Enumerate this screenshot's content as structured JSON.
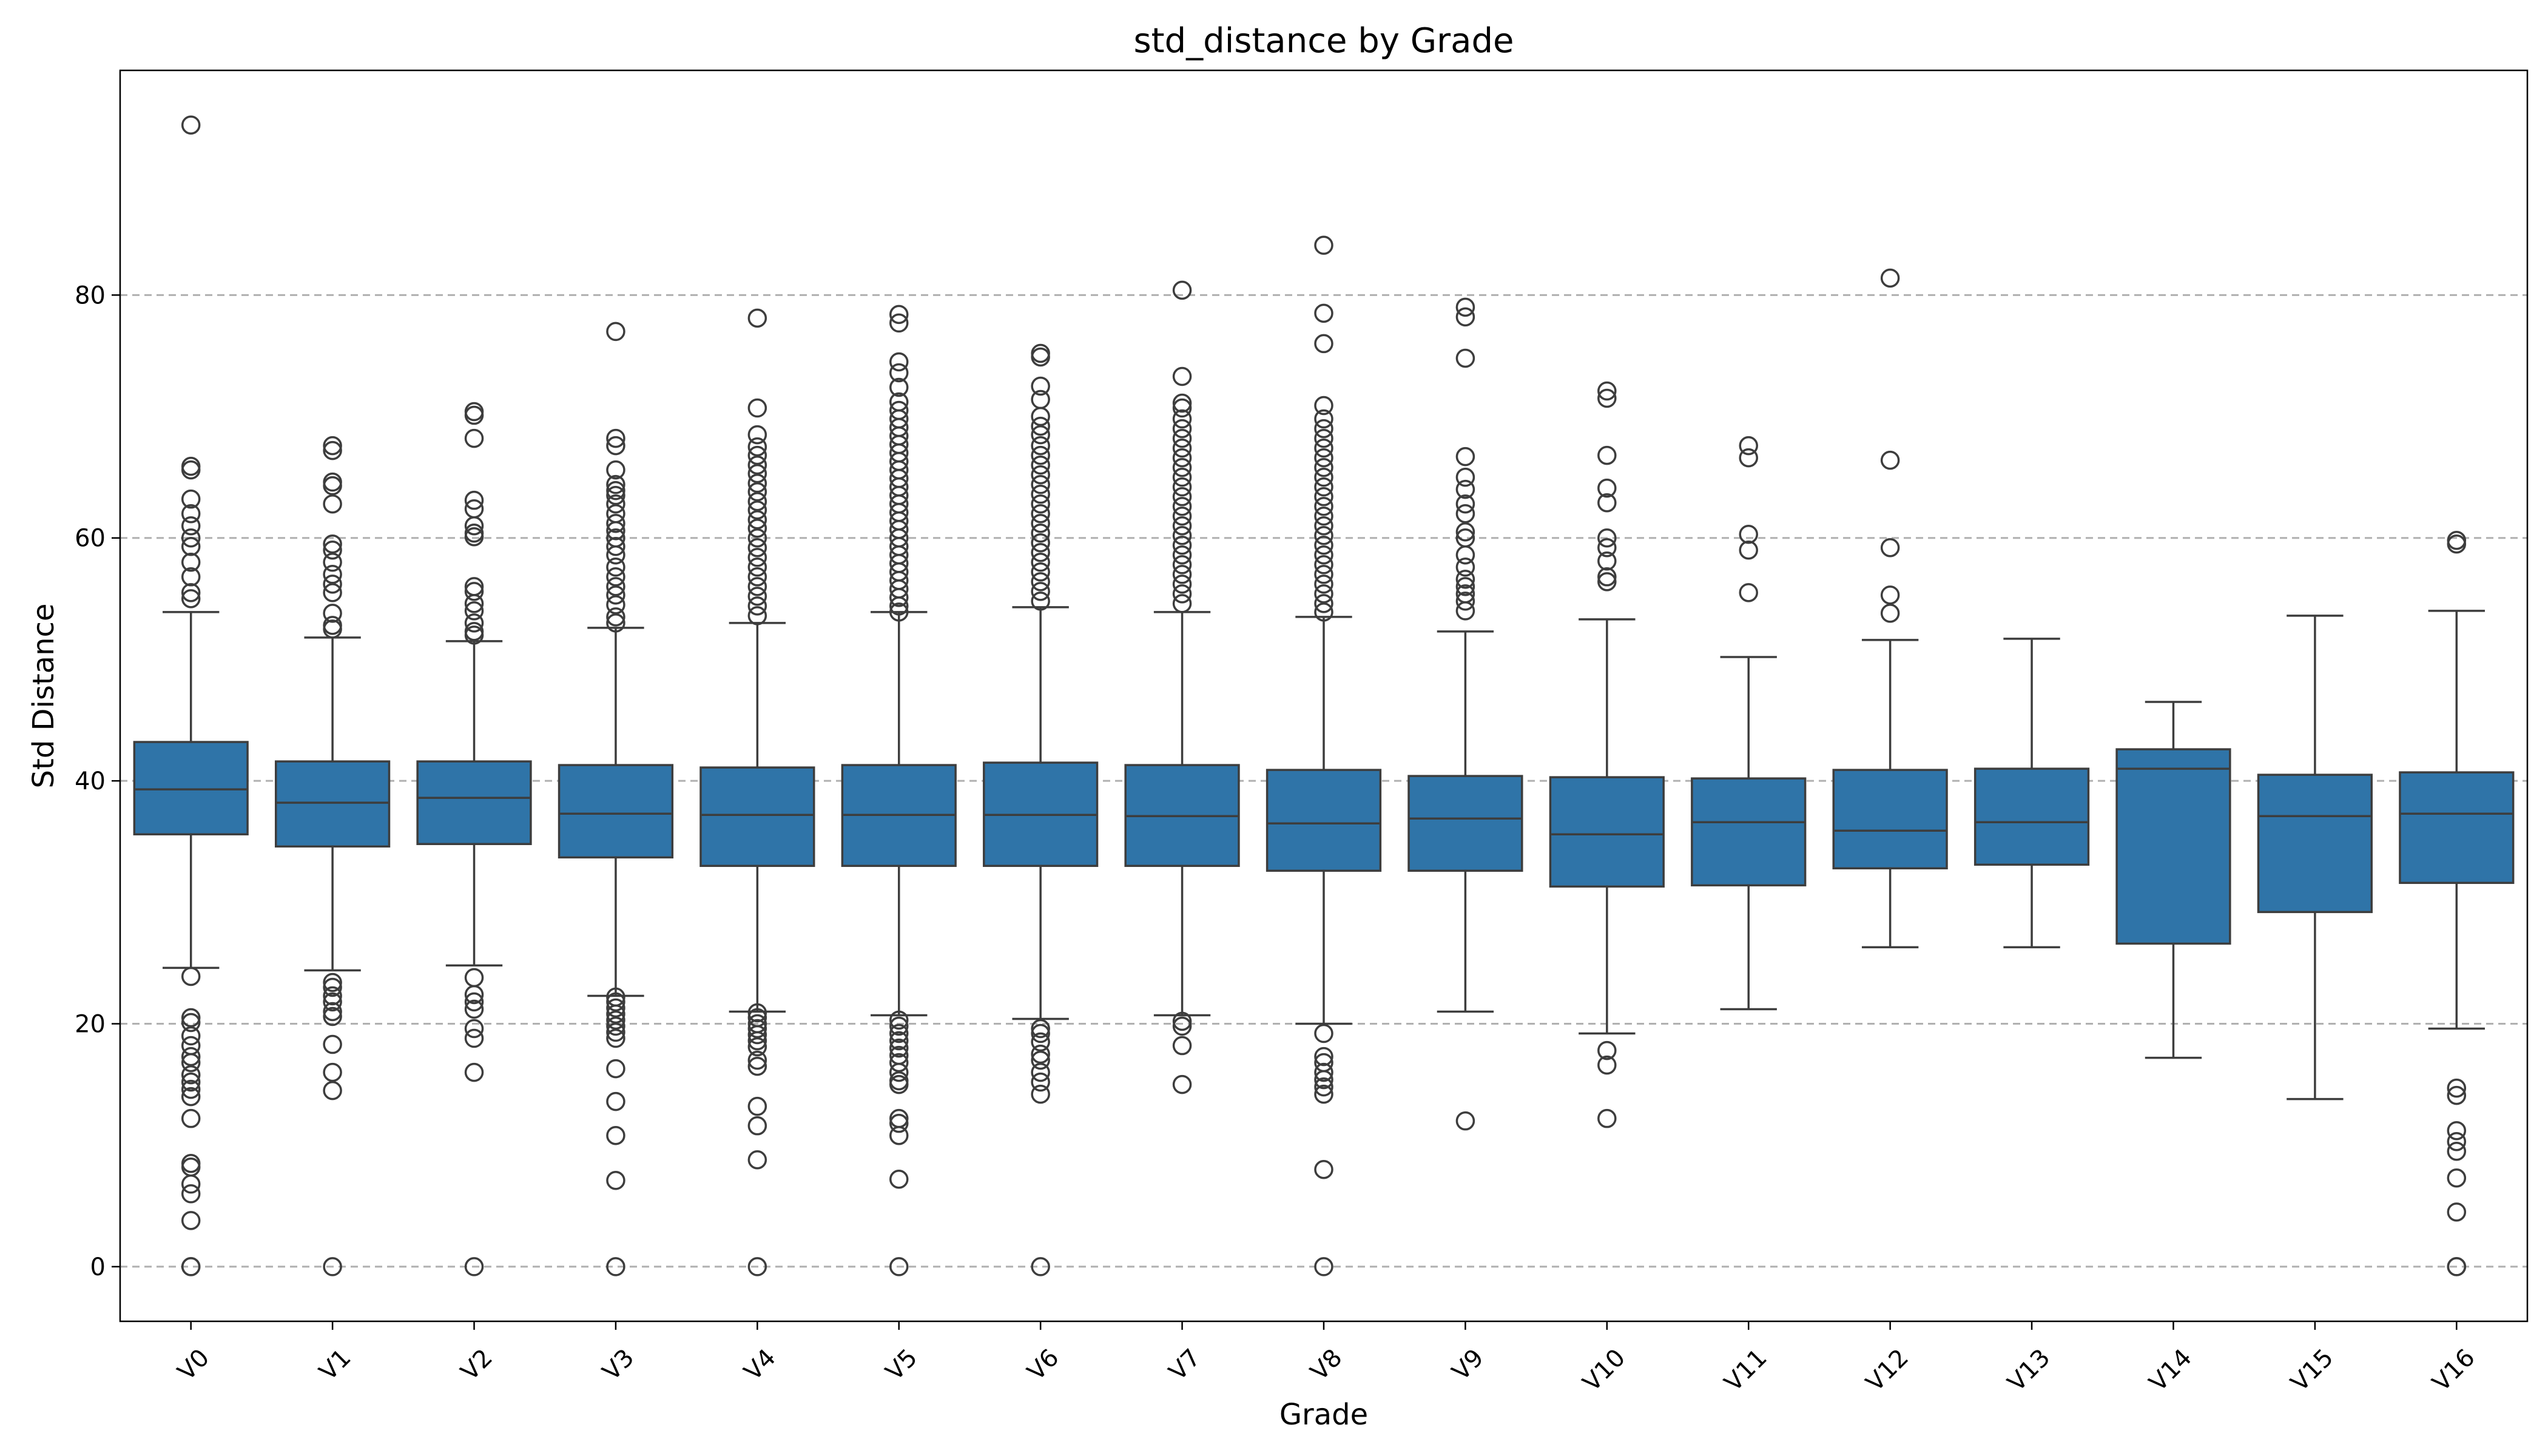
{
  "chart_data": {
    "type": "box",
    "title": "std_distance by Grade",
    "xlabel": "Grade",
    "ylabel": "Std Distance",
    "ylim": [
      -4.5,
      98.5
    ],
    "yticks": [
      0,
      20,
      40,
      60,
      80
    ],
    "grid": "horizontal dashed",
    "box_color": "#2f74a8",
    "line_color": "#3d3d3d",
    "categories": [
      "V0",
      "V1",
      "V2",
      "V3",
      "V4",
      "V5",
      "V6",
      "V7",
      "V8",
      "V9",
      "V10",
      "V11",
      "V12",
      "V13",
      "V14",
      "V15",
      "V16"
    ],
    "boxes": [
      {
        "q1": 35.6,
        "median": 39.3,
        "q3": 43.2,
        "whislo": 24.6,
        "whishi": 53.9,
        "fliers": [
          94.0,
          65.9,
          65.6,
          63.2,
          62.0,
          61.0,
          60.0,
          59.3,
          58.0,
          56.8,
          55.5,
          55.0,
          23.9,
          20.5,
          20.1,
          19.0,
          18.2,
          17.3,
          16.8,
          15.8,
          15.2,
          14.6,
          14.0,
          12.2,
          8.5,
          8.2,
          6.8,
          6.0,
          3.8,
          0.0,
          0.0
        ]
      },
      {
        "q1": 34.6,
        "median": 38.2,
        "q3": 41.6,
        "whislo": 24.4,
        "whishi": 51.8,
        "fliers": [
          67.6,
          67.2,
          64.6,
          64.3,
          62.8,
          59.5,
          59.0,
          58.0,
          57.0,
          56.2,
          55.5,
          53.8,
          52.8,
          52.5,
          23.4,
          23.0,
          22.3,
          21.8,
          21.0,
          20.6,
          18.3,
          16.0,
          14.5,
          0.0
        ]
      },
      {
        "q1": 34.8,
        "median": 38.6,
        "q3": 41.6,
        "whislo": 24.8,
        "whishi": 51.5,
        "fliers": [
          70.4,
          70.1,
          68.2,
          63.1,
          62.4,
          61.0,
          60.4,
          60.1,
          56.0,
          55.6,
          54.6,
          54.0,
          53.0,
          52.3,
          52.0,
          23.8,
          22.4,
          21.8,
          21.2,
          19.6,
          18.8,
          16.0,
          0.0
        ]
      },
      {
        "q1": 33.7,
        "median": 37.3,
        "q3": 41.3,
        "whislo": 22.3,
        "whishi": 52.6,
        "fliers": [
          77.0,
          68.2,
          67.6,
          65.6,
          64.4,
          63.9,
          63.5,
          62.8,
          62.0,
          61.2,
          60.6,
          60.0,
          59.3,
          58.6,
          57.6,
          56.8,
          56.0,
          55.3,
          54.5,
          53.5,
          53.0,
          22.2,
          21.8,
          21.3,
          20.8,
          20.3,
          19.8,
          19.3,
          18.8,
          16.3,
          13.6,
          10.8,
          7.1,
          0.0
        ]
      },
      {
        "q1": 33.0,
        "median": 37.2,
        "q3": 41.1,
        "whislo": 21.0,
        "whishi": 53.0,
        "fliers": [
          78.1,
          70.7,
          68.5,
          67.5,
          66.8,
          66.0,
          65.3,
          64.5,
          63.8,
          63.0,
          62.3,
          61.5,
          60.8,
          60.0,
          59.2,
          58.4,
          57.6,
          56.8,
          56.0,
          55.2,
          54.4,
          53.6,
          20.9,
          20.5,
          20.0,
          19.6,
          19.1,
          18.6,
          18.1,
          17.0,
          16.5,
          13.2,
          11.6,
          8.8,
          0.0
        ]
      },
      {
        "q1": 33.0,
        "median": 37.2,
        "q3": 41.3,
        "whislo": 20.7,
        "whishi": 53.9,
        "fliers": [
          78.4,
          77.7,
          74.5,
          73.6,
          72.4,
          71.2,
          70.5,
          69.8,
          69.1,
          68.4,
          67.7,
          67.0,
          66.3,
          65.6,
          64.9,
          64.2,
          63.5,
          62.8,
          62.1,
          61.4,
          60.7,
          60.0,
          59.3,
          58.6,
          57.9,
          57.2,
          56.5,
          55.8,
          55.1,
          54.4,
          53.9,
          20.3,
          19.8,
          19.2,
          18.6,
          18.0,
          17.4,
          16.8,
          16.0,
          15.3,
          15.0,
          12.2,
          11.8,
          10.8,
          7.2,
          0.0
        ]
      },
      {
        "q1": 33.0,
        "median": 37.2,
        "q3": 41.5,
        "whislo": 20.4,
        "whishi": 54.3,
        "fliers": [
          75.2,
          74.9,
          72.5,
          71.4,
          70.0,
          69.2,
          68.5,
          67.6,
          66.8,
          66.0,
          65.2,
          64.4,
          63.6,
          62.8,
          62.0,
          61.2,
          60.4,
          59.6,
          58.8,
          58.0,
          57.2,
          56.4,
          55.6,
          54.8,
          19.6,
          19.2,
          18.5,
          17.5,
          17.0,
          16.0,
          15.2,
          14.2,
          0.0
        ]
      },
      {
        "q1": 33.0,
        "median": 37.1,
        "q3": 41.3,
        "whislo": 20.7,
        "whishi": 53.9,
        "fliers": [
          80.4,
          73.3,
          71.1,
          70.7,
          69.8,
          69.0,
          68.2,
          67.4,
          66.6,
          65.8,
          65.0,
          64.2,
          63.4,
          62.6,
          61.8,
          61.0,
          60.2,
          59.4,
          58.6,
          57.8,
          57.0,
          56.2,
          55.4,
          54.6,
          20.2,
          19.8,
          18.2,
          15.0
        ]
      },
      {
        "q1": 32.6,
        "median": 36.5,
        "q3": 40.9,
        "whislo": 20.0,
        "whishi": 53.5,
        "fliers": [
          84.1,
          78.5,
          76.0,
          70.9,
          69.8,
          69.0,
          68.2,
          67.4,
          66.6,
          65.8,
          65.0,
          64.2,
          63.4,
          62.6,
          61.8,
          61.0,
          60.2,
          59.4,
          58.6,
          57.8,
          57.0,
          56.2,
          55.4,
          54.6,
          53.9,
          19.2,
          17.3,
          16.8,
          16.0,
          15.4,
          14.8,
          14.2,
          8.0,
          0.0
        ]
      },
      {
        "q1": 32.6,
        "median": 36.9,
        "q3": 40.4,
        "whislo": 21.0,
        "whishi": 52.3,
        "fliers": [
          79.0,
          78.2,
          74.8,
          66.7,
          65.0,
          64.0,
          62.8,
          62.0,
          60.5,
          60.0,
          58.6,
          57.6,
          56.6,
          56.0,
          55.4,
          54.8,
          54.0,
          12.0
        ]
      },
      {
        "q1": 31.3,
        "median": 35.6,
        "q3": 40.3,
        "whislo": 19.2,
        "whishi": 53.3,
        "fliers": [
          72.1,
          71.5,
          66.8,
          64.1,
          62.9,
          60.0,
          59.2,
          58.1,
          56.8,
          56.4,
          17.8,
          16.6,
          12.2
        ]
      },
      {
        "q1": 31.4,
        "median": 36.6,
        "q3": 40.2,
        "whislo": 21.2,
        "whishi": 50.2,
        "fliers": [
          67.6,
          66.6,
          60.3,
          59.0,
          55.5
        ]
      },
      {
        "q1": 32.8,
        "median": 35.9,
        "q3": 40.9,
        "whislo": 26.3,
        "whishi": 51.6,
        "fliers": [
          81.4,
          66.4,
          59.2,
          55.3,
          53.8
        ]
      },
      {
        "q1": 33.1,
        "median": 36.6,
        "q3": 41.0,
        "whislo": 26.3,
        "whishi": 51.7,
        "fliers": []
      },
      {
        "q1": 26.6,
        "median": 41.0,
        "q3": 42.6,
        "whislo": 17.2,
        "whishi": 46.5,
        "fliers": []
      },
      {
        "q1": 29.2,
        "median": 37.1,
        "q3": 40.5,
        "whislo": 13.8,
        "whishi": 53.6,
        "fliers": []
      },
      {
        "q1": 31.6,
        "median": 37.3,
        "q3": 40.7,
        "whislo": 19.6,
        "whishi": 54.0,
        "fliers": [
          59.8,
          59.5,
          14.7,
          14.1,
          11.2,
          10.3,
          9.5,
          7.3,
          4.5,
          0.0,
          0.0
        ]
      }
    ]
  }
}
